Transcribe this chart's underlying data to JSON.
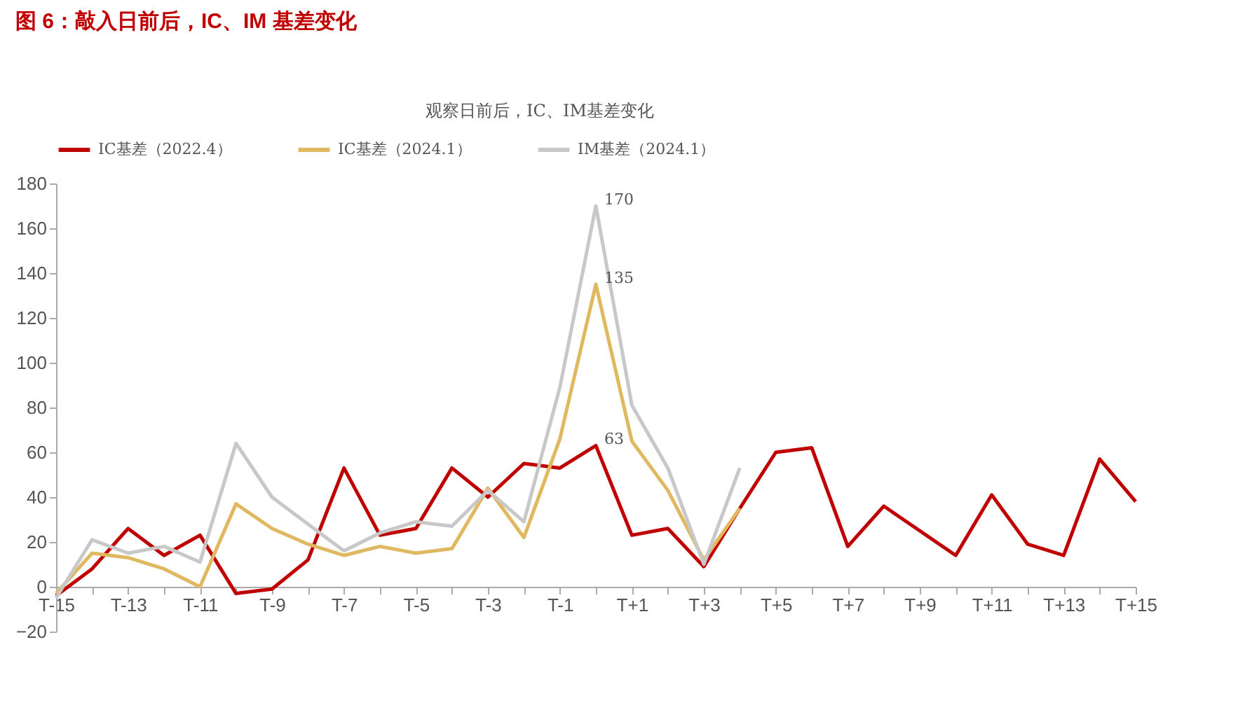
{
  "chart_data": {
    "type": "line",
    "title": "图 6：敲入日前后，IC、IM 基差变化",
    "subtitle": "观察日前后，IC、IM基差变化",
    "categories": [
      "T-15",
      null,
      "T-13",
      null,
      "T-11",
      null,
      "T-9",
      null,
      "T-7",
      null,
      "T-5",
      null,
      "T-3",
      null,
      "T-1",
      null,
      "T+1",
      null,
      "T+3",
      null,
      "T+5",
      null,
      "T+7",
      null,
      "T+9",
      null,
      "T+11",
      null,
      "T+13",
      null,
      "T+15"
    ],
    "series": [
      {
        "name": "IC基差（2022.4）",
        "color": "#c00000",
        "values": [
          -4,
          8,
          26,
          14,
          23,
          -3,
          -1,
          12,
          53,
          23,
          26,
          53,
          40,
          55,
          53,
          63,
          23,
          26,
          9,
          35,
          60,
          62,
          18,
          36,
          25,
          14,
          41,
          19,
          14,
          57,
          38
        ]
      },
      {
        "name": "IC基差（2024.1）",
        "color": "#e0b860",
        "values": [
          -3,
          15,
          13,
          8,
          0,
          37,
          26,
          19,
          14,
          18,
          15,
          17,
          44,
          22,
          66,
          135,
          65,
          43,
          12,
          35,
          null,
          null,
          null,
          null,
          null,
          null,
          null,
          null,
          null,
          null,
          null
        ]
      },
      {
        "name": "IM基差（2024.1）",
        "color": "#c8c8c8",
        "values": [
          -5,
          21,
          15,
          18,
          11,
          64,
          40,
          28,
          16,
          24,
          29,
          27,
          43,
          29,
          89,
          170,
          81,
          53,
          10,
          53,
          null,
          null,
          null,
          null,
          null,
          null,
          null,
          null,
          null,
          null,
          null
        ]
      }
    ],
    "ylim": [
      -20,
      180
    ],
    "yticks": [
      -20,
      0,
      20,
      40,
      60,
      80,
      100,
      120,
      140,
      160,
      180
    ],
    "grid": false,
    "legend": "top",
    "marker": "none",
    "line_style": "solid",
    "annotations": [
      "170",
      "135",
      "63"
    ]
  }
}
